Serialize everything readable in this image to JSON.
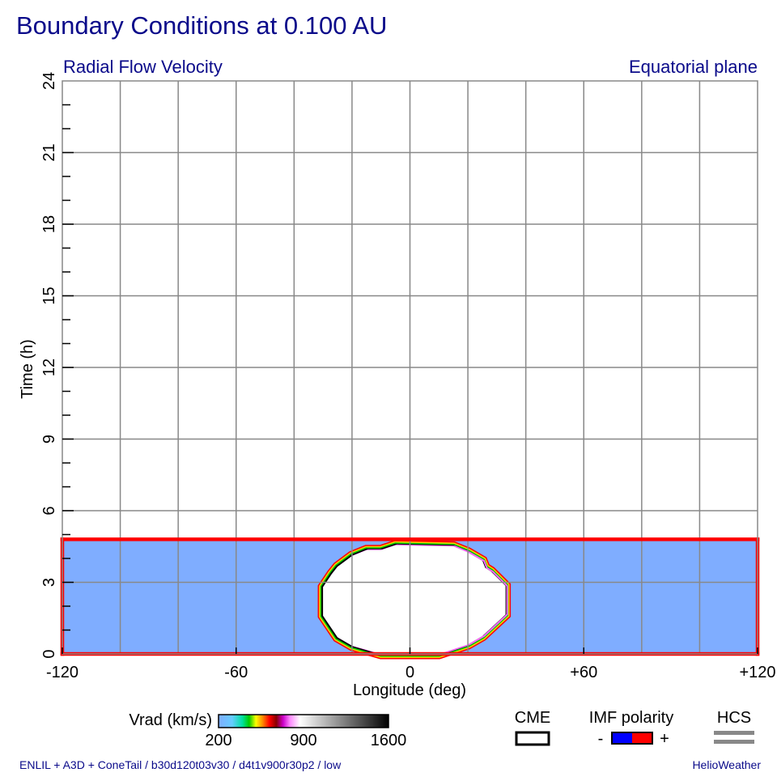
{
  "title": "Boundary Conditions at 0.100 AU",
  "subtitle_left": "Radial Flow Velocity",
  "subtitle_right": "Equatorial plane",
  "footer_left": "ENLIL + A3D + ConeTail / b30d120t03v30 / d4t1v900r30p2 / low",
  "footer_right": "HelioWeather",
  "chart_data": {
    "type": "heatmap",
    "title": "Boundary Conditions at 0.100 AU",
    "xlabel": "Longitude (deg)",
    "ylabel": "Time (h)",
    "xlim": [
      -120,
      120
    ],
    "ylim": [
      0,
      24
    ],
    "x_ticks": [
      -120,
      -60,
      0,
      60,
      120
    ],
    "x_tick_labels": [
      "-120",
      "-60",
      "0",
      "+60",
      "+120"
    ],
    "y_ticks": [
      0,
      3,
      6,
      9,
      12,
      15,
      18,
      21,
      24
    ],
    "y_tick_labels": [
      "0",
      "3",
      "6",
      "9",
      "12",
      "15",
      "18",
      "21",
      "24"
    ],
    "grid": true,
    "background_field": {
      "variable": "Vrad",
      "color": "#7fadff",
      "time_range": [
        0,
        4.8
      ],
      "approx_value_km_s": 300
    },
    "cme": {
      "label": "CME",
      "center_longitude": 0,
      "longitude_half_width": 35,
      "time_range": [
        0,
        4.55
      ],
      "fill": "#ffffff",
      "outline": [
        [
          -10,
          0
        ],
        [
          10,
          0
        ],
        [
          20,
          0.4
        ],
        [
          25,
          0.75
        ],
        [
          33,
          1.65
        ],
        [
          33,
          2.85
        ],
        [
          28,
          3.45
        ],
        [
          26,
          3.6
        ],
        [
          25,
          3.9
        ],
        [
          20,
          4.25
        ],
        [
          15,
          4.5
        ],
        [
          -5,
          4.55
        ],
        [
          -10,
          4.35
        ],
        [
          -15,
          4.35
        ],
        [
          -20,
          4.1
        ],
        [
          -25,
          3.65
        ],
        [
          -27,
          3.35
        ],
        [
          -30,
          2.8
        ],
        [
          -30,
          1.6
        ],
        [
          -25,
          0.7
        ],
        [
          -20,
          0.35
        ]
      ]
    },
    "hcs": {
      "label": "HCS",
      "segments": [
        {
          "x": [
            -120,
            120
          ],
          "y": [
            0,
            0
          ]
        },
        {
          "x": [
            -120,
            120
          ],
          "y": [
            4.8,
            4.8
          ]
        },
        {
          "x": [
            -120,
            -120
          ],
          "y": [
            0,
            4.8
          ]
        },
        {
          "x": [
            120,
            120
          ],
          "y": [
            0,
            4.8
          ]
        }
      ]
    },
    "colorbar": {
      "label": "Vrad (km/s)",
      "min": 200,
      "max": 1600,
      "tick_labels": [
        "200",
        "900",
        "1600"
      ]
    },
    "legend": {
      "cme_label": "CME",
      "imf_label": "IMF polarity",
      "imf_minus": "-",
      "imf_plus": "+",
      "hcs_label": "HCS",
      "colors": {
        "imf_minus": "#0000ff",
        "imf_plus": "#ff0000",
        "hcs": "#888888"
      }
    },
    "colors": {
      "polarity_line": "#ff0000",
      "grid": "#888888",
      "text": "#0a0a8a"
    }
  }
}
